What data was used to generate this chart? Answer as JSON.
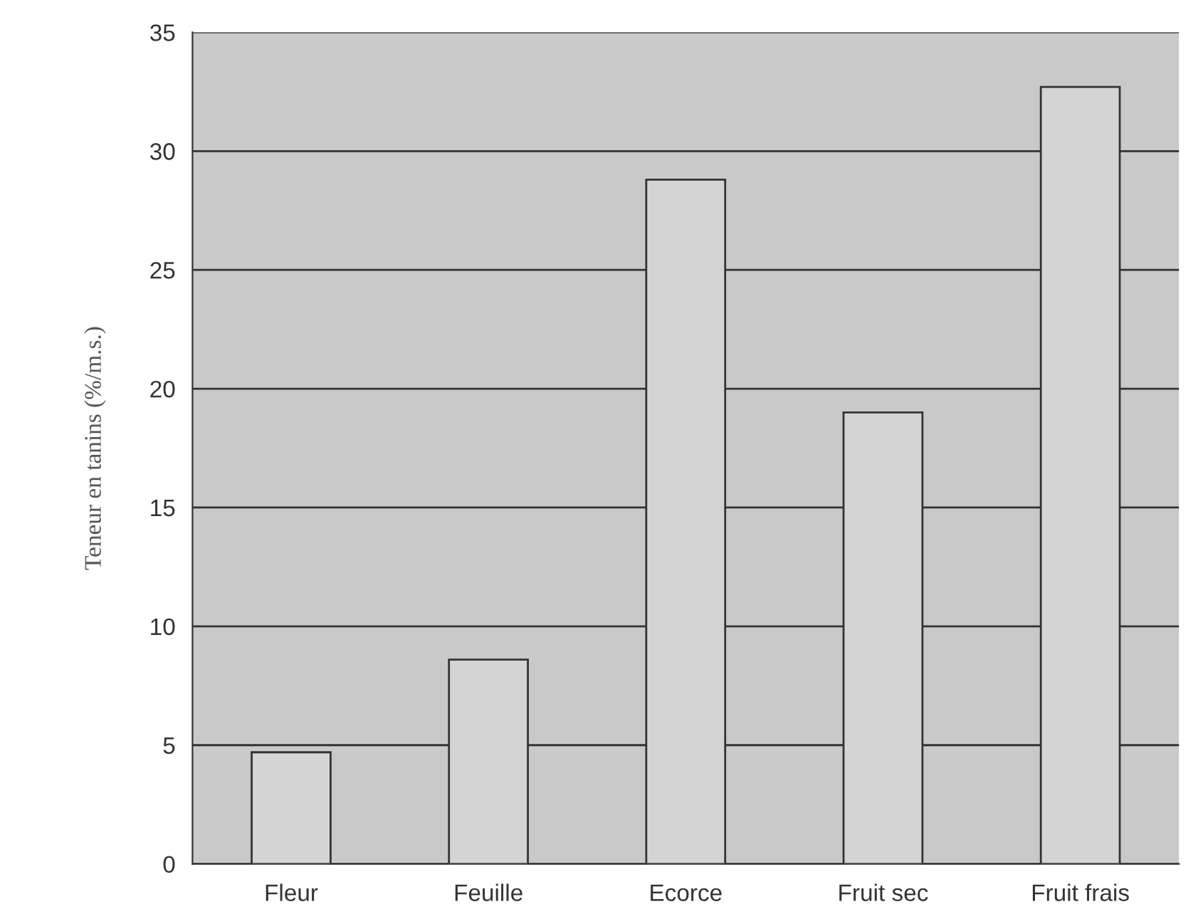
{
  "chart_data": {
    "type": "bar",
    "ylabel": "Teneur en tanins (%/m.s.)",
    "categories": [
      "Fleur",
      "Feuille",
      "Ecorce",
      "Fruit sec",
      "Fruit frais"
    ],
    "values": [
      4.7,
      8.6,
      28.8,
      19.0,
      32.7
    ],
    "color": "#d4d4d4",
    "ylim": [
      0,
      35
    ],
    "yticks": [
      0,
      5,
      10,
      15,
      20,
      25,
      30,
      35
    ],
    "grid": "y"
  }
}
